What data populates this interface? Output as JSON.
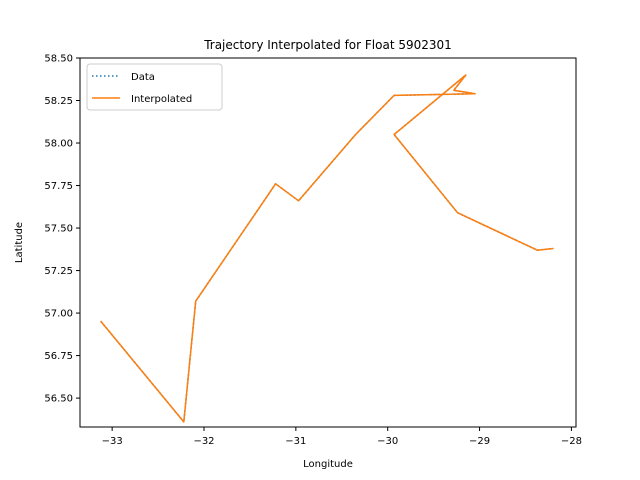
{
  "chart_data": {
    "type": "line",
    "title": "Trajectory Interpolated for Float 5902301",
    "xlabel": "Longitude",
    "ylabel": "Latitude",
    "xlim": [
      -33.35,
      -27.95
    ],
    "ylim": [
      56.33,
      58.5
    ],
    "xticks": [
      -33,
      -32,
      -31,
      -30,
      -29,
      -28
    ],
    "xtick_labels": [
      "−33",
      "−32",
      "−31",
      "−30",
      "−29",
      "−28"
    ],
    "yticks": [
      56.5,
      56.75,
      57.0,
      57.25,
      57.5,
      57.75,
      58.0,
      58.25,
      58.5
    ],
    "ytick_labels": [
      "56.50",
      "56.75",
      "57.00",
      "57.25",
      "57.50",
      "57.75",
      "58.00",
      "58.25",
      "58.50"
    ],
    "grid": false,
    "legend_position": "top-left",
    "series": [
      {
        "name": "Data",
        "style": "dotted",
        "color": "#1f77b4",
        "x": [
          -33.12,
          -32.22,
          -32.09,
          -31.22,
          -30.97,
          -30.35,
          -29.93,
          -29.05,
          -29.28,
          -29.15,
          -29.93,
          -29.24,
          -28.37,
          -28.2
        ],
        "y": [
          56.95,
          56.36,
          57.07,
          57.76,
          57.66,
          58.05,
          58.28,
          58.29,
          58.31,
          58.4,
          58.05,
          57.59,
          57.37,
          57.38
        ]
      },
      {
        "name": "Interpolated",
        "style": "solid",
        "color": "#ff7f0e",
        "x": [
          -33.12,
          -32.22,
          -32.09,
          -31.22,
          -30.97,
          -30.35,
          -29.93,
          -29.05,
          -29.28,
          -29.15,
          -29.93,
          -29.24,
          -28.37,
          -28.2
        ],
        "y": [
          56.95,
          56.36,
          57.07,
          57.76,
          57.66,
          58.05,
          58.28,
          58.29,
          58.31,
          58.4,
          58.05,
          57.59,
          57.37,
          57.38
        ]
      }
    ]
  }
}
